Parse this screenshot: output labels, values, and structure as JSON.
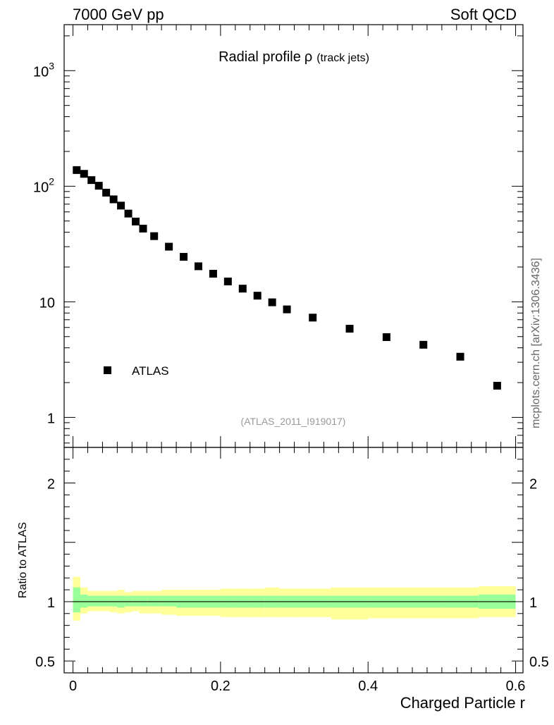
{
  "header": {
    "left": "7000 GeV pp",
    "right": "Soft QCD"
  },
  "watermark": "mcplots.cern.ch [arXiv:1306.3436]",
  "colors": {
    "marker": "#000000",
    "band_inner": "#99ff99",
    "band_outer": "#ffff99",
    "ref_label": "#999999"
  },
  "chart_data": {
    "type": "scatter",
    "title": "Radial profile",
    "title_symbol": "ρ",
    "title_suffix": "(track jets)",
    "reference_label": "(ATLAS_2011_I919017)",
    "xlabel": "Charged Particle r",
    "ylabel_ratio": "Ratio to ATLAS",
    "xlim": [
      -0.012,
      0.61
    ],
    "ylim": [
      0.55,
      2500
    ],
    "ylog": true,
    "ratio_ylim": [
      0.4,
      2.3
    ],
    "x_ticks": [
      {
        "v": 0,
        "label": "0"
      },
      {
        "v": 0.2,
        "label": "0.2"
      },
      {
        "v": 0.4,
        "label": "0.4"
      },
      {
        "v": 0.6,
        "label": "0.6"
      }
    ],
    "y_ticks": [
      {
        "v": 1,
        "label": "1",
        "exp": ""
      },
      {
        "v": 10,
        "label": "10",
        "exp": ""
      },
      {
        "v": 100,
        "label": "10",
        "exp": "2"
      },
      {
        "v": 1000,
        "label": "10",
        "exp": "3"
      }
    ],
    "ratio_ticks": [
      {
        "v": 0.5,
        "label": "0.5"
      },
      {
        "v": 1,
        "label": "1"
      },
      {
        "v": 2,
        "label": "2"
      }
    ],
    "legend": [
      {
        "label": "ATLAS",
        "marker": "square"
      }
    ],
    "series": [
      {
        "name": "ATLAS",
        "x": [
          0.005,
          0.015,
          0.025,
          0.035,
          0.045,
          0.055,
          0.065,
          0.075,
          0.085,
          0.095,
          0.11,
          0.13,
          0.15,
          0.17,
          0.19,
          0.21,
          0.23,
          0.25,
          0.27,
          0.29,
          0.325,
          0.375,
          0.425,
          0.475,
          0.525,
          0.575
        ],
        "y": [
          138,
          128,
          113,
          101,
          88,
          77,
          68,
          58,
          49.5,
          43,
          37,
          30,
          24.5,
          20.3,
          17.5,
          15,
          13,
          11.3,
          9.9,
          8.6,
          7.3,
          5.85,
          4.95,
          4.25,
          3.35,
          1.88
        ]
      }
    ],
    "ratio_bands": [
      {
        "x0": 0.0,
        "x1": 0.01,
        "in_lo": 0.91,
        "in_hi": 1.12,
        "out_lo": 0.84,
        "out_hi": 1.21
      },
      {
        "x0": 0.01,
        "x1": 0.02,
        "in_lo": 0.95,
        "in_hi": 1.06,
        "out_lo": 0.9,
        "out_hi": 1.12
      },
      {
        "x0": 0.02,
        "x1": 0.03,
        "in_lo": 0.96,
        "in_hi": 1.05,
        "out_lo": 0.92,
        "out_hi": 1.09
      },
      {
        "x0": 0.03,
        "x1": 0.04,
        "in_lo": 0.96,
        "in_hi": 1.05,
        "out_lo": 0.92,
        "out_hi": 1.09
      },
      {
        "x0": 0.04,
        "x1": 0.05,
        "in_lo": 0.96,
        "in_hi": 1.05,
        "out_lo": 0.92,
        "out_hi": 1.09
      },
      {
        "x0": 0.05,
        "x1": 0.06,
        "in_lo": 0.96,
        "in_hi": 1.05,
        "out_lo": 0.91,
        "out_hi": 1.09
      },
      {
        "x0": 0.06,
        "x1": 0.07,
        "in_lo": 0.95,
        "in_hi": 1.05,
        "out_lo": 0.9,
        "out_hi": 1.1
      },
      {
        "x0": 0.07,
        "x1": 0.08,
        "in_lo": 0.96,
        "in_hi": 1.05,
        "out_lo": 0.91,
        "out_hi": 1.08
      },
      {
        "x0": 0.08,
        "x1": 0.09,
        "in_lo": 0.96,
        "in_hi": 1.05,
        "out_lo": 0.92,
        "out_hi": 1.09
      },
      {
        "x0": 0.09,
        "x1": 0.1,
        "in_lo": 0.96,
        "in_hi": 1.05,
        "out_lo": 0.9,
        "out_hi": 1.09
      },
      {
        "x0": 0.1,
        "x1": 0.12,
        "in_lo": 0.96,
        "in_hi": 1.05,
        "out_lo": 0.9,
        "out_hi": 1.09
      },
      {
        "x0": 0.12,
        "x1": 0.14,
        "in_lo": 0.96,
        "in_hi": 1.05,
        "out_lo": 0.89,
        "out_hi": 1.1
      },
      {
        "x0": 0.14,
        "x1": 0.16,
        "in_lo": 0.95,
        "in_hi": 1.05,
        "out_lo": 0.88,
        "out_hi": 1.1
      },
      {
        "x0": 0.16,
        "x1": 0.18,
        "in_lo": 0.95,
        "in_hi": 1.05,
        "out_lo": 0.88,
        "out_hi": 1.1
      },
      {
        "x0": 0.18,
        "x1": 0.2,
        "in_lo": 0.95,
        "in_hi": 1.05,
        "out_lo": 0.88,
        "out_hi": 1.1
      },
      {
        "x0": 0.2,
        "x1": 0.22,
        "in_lo": 0.95,
        "in_hi": 1.05,
        "out_lo": 0.87,
        "out_hi": 1.11
      },
      {
        "x0": 0.22,
        "x1": 0.24,
        "in_lo": 0.95,
        "in_hi": 1.05,
        "out_lo": 0.87,
        "out_hi": 1.11
      },
      {
        "x0": 0.24,
        "x1": 0.26,
        "in_lo": 0.95,
        "in_hi": 1.05,
        "out_lo": 0.87,
        "out_hi": 1.11
      },
      {
        "x0": 0.26,
        "x1": 0.28,
        "in_lo": 0.95,
        "in_hi": 1.05,
        "out_lo": 0.87,
        "out_hi": 1.12
      },
      {
        "x0": 0.28,
        "x1": 0.3,
        "in_lo": 0.95,
        "in_hi": 1.05,
        "out_lo": 0.87,
        "out_hi": 1.11
      },
      {
        "x0": 0.3,
        "x1": 0.35,
        "in_lo": 0.95,
        "in_hi": 1.05,
        "out_lo": 0.87,
        "out_hi": 1.11
      },
      {
        "x0": 0.35,
        "x1": 0.4,
        "in_lo": 0.95,
        "in_hi": 1.05,
        "out_lo": 0.85,
        "out_hi": 1.12
      },
      {
        "x0": 0.4,
        "x1": 0.45,
        "in_lo": 0.95,
        "in_hi": 1.05,
        "out_lo": 0.86,
        "out_hi": 1.12
      },
      {
        "x0": 0.45,
        "x1": 0.5,
        "in_lo": 0.95,
        "in_hi": 1.05,
        "out_lo": 0.86,
        "out_hi": 1.12
      },
      {
        "x0": 0.5,
        "x1": 0.55,
        "in_lo": 0.95,
        "in_hi": 1.05,
        "out_lo": 0.86,
        "out_hi": 1.12
      },
      {
        "x0": 0.55,
        "x1": 0.6,
        "in_lo": 0.94,
        "in_hi": 1.06,
        "out_lo": 0.87,
        "out_hi": 1.13
      }
    ]
  }
}
